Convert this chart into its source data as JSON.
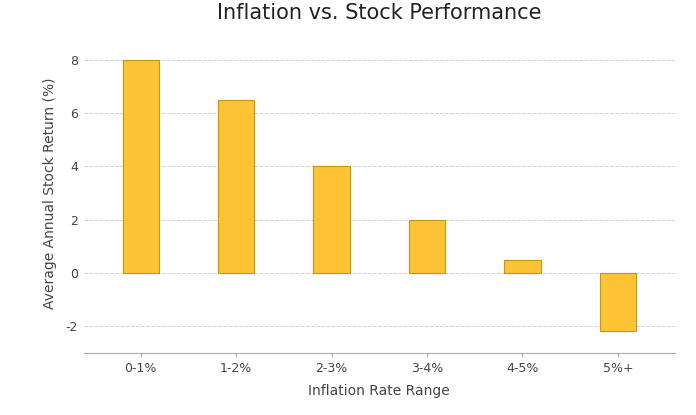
{
  "title": "Inflation vs. Stock Performance",
  "xlabel": "Inflation Rate Range",
  "ylabel": "Average Annual Stock Return (%)",
  "categories": [
    "0-1%",
    "1-2%",
    "2-3%",
    "3-4%",
    "4-5%",
    "5%+"
  ],
  "values": [
    8.0,
    6.5,
    4.0,
    2.0,
    0.5,
    -2.2
  ],
  "bar_color": "#FFC336",
  "bar_edge_color": "#C8960C",
  "background_color": "#FFFFFF",
  "grid_color": "#D0D0D0",
  "ylim": [
    -3,
    9
  ],
  "yticks": [
    -2,
    0,
    2,
    4,
    6,
    8
  ],
  "title_fontsize": 15,
  "axis_label_fontsize": 10,
  "tick_fontsize": 9,
  "bar_width": 0.38
}
